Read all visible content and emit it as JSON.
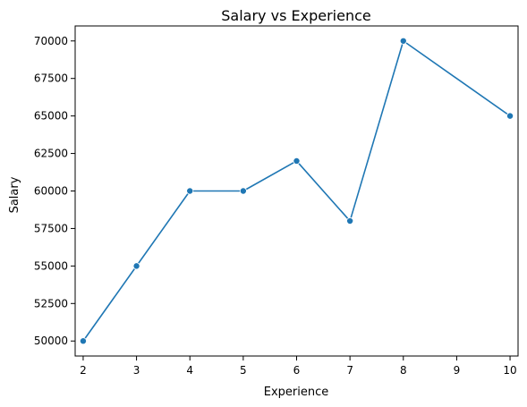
{
  "chart_data": {
    "type": "line",
    "title": "Salary vs Experience",
    "xlabel": "Experience",
    "ylabel": "Salary",
    "x": [
      2,
      3,
      4,
      5,
      6,
      7,
      8,
      10
    ],
    "y": [
      50000,
      55000,
      60000,
      60000,
      62000,
      58000,
      70000,
      65000
    ],
    "xlim": [
      1.85,
      10.15
    ],
    "ylim": [
      49000,
      71000
    ],
    "xticks": [
      2,
      3,
      4,
      5,
      6,
      7,
      8,
      9,
      10
    ],
    "xtick_labels": [
      "2",
      "3",
      "4",
      "5",
      "6",
      "7",
      "8",
      "9",
      "10"
    ],
    "yticks": [
      50000,
      52500,
      55000,
      57500,
      60000,
      62500,
      65000,
      67500,
      70000
    ],
    "ytick_labels": [
      "50000",
      "52500",
      "55000",
      "57500",
      "60000",
      "62500",
      "65000",
      "67500",
      "70000"
    ],
    "grid": false,
    "legend": false,
    "series_color": "#1f77b4",
    "marker": "circle"
  }
}
